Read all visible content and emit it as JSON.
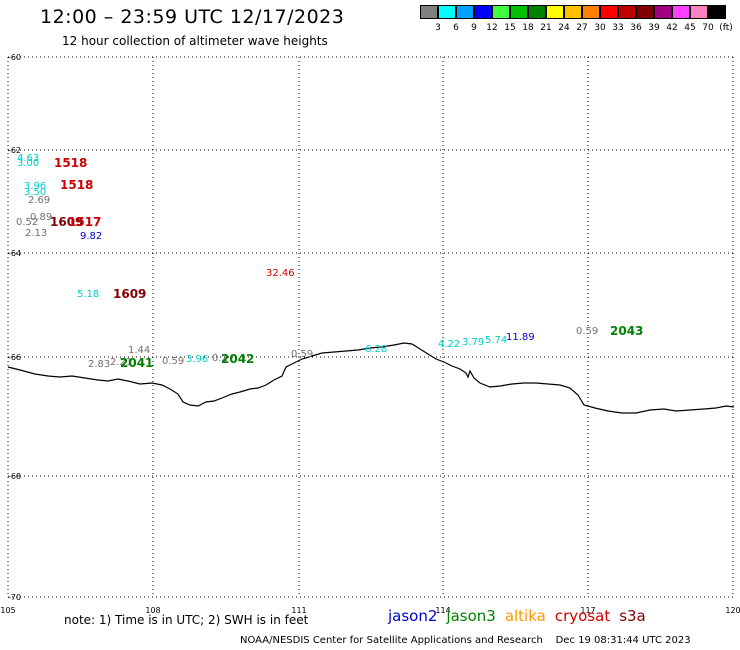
{
  "header": {
    "title": "12:00 – 23:59 UTC 12/17/2023",
    "subtitle": "12 hour collection of altimeter wave heights"
  },
  "legend": {
    "colors": [
      "#808080",
      "#00ffff",
      "#00a0ff",
      "#0000ff",
      "#40ff40",
      "#00c000",
      "#008000",
      "#ffff00",
      "#ffc000",
      "#ff8000",
      "#ff0000",
      "#c00000",
      "#800000",
      "#a00080",
      "#ff40ff",
      "#ff80c0",
      "#000000"
    ],
    "labels": [
      "3",
      "6",
      "9",
      "12",
      "15",
      "18",
      "21",
      "24",
      "27",
      "30",
      "33",
      "36",
      "39",
      "42",
      "45",
      "70"
    ],
    "unit": "(ft)"
  },
  "map": {
    "lon_ticks": [
      "105",
      "108",
      "111",
      "114",
      "117",
      "120"
    ],
    "lat_ticks": [
      "-60",
      "-62",
      "-64",
      "-66",
      "-68",
      "-70"
    ],
    "coastline_color": "#000000",
    "grid_color": "#000000"
  },
  "annotations": [
    {
      "text": "4.63",
      "color": "#00cccc",
      "size": "small"
    },
    {
      "text": "3.00",
      "color": "#00cccc",
      "size": "small"
    },
    {
      "text": "1518",
      "color": "#cc0000",
      "size": "big"
    },
    {
      "text": "3.96",
      "color": "#00cccc",
      "size": "small"
    },
    {
      "text": "3.50",
      "color": "#00cccc",
      "size": "small"
    },
    {
      "text": "1518",
      "color": "#cc0000",
      "size": "big"
    },
    {
      "text": "2.69",
      "color": "#707070",
      "size": "small"
    },
    {
      "text": "0.89",
      "color": "#707070",
      "size": "small"
    },
    {
      "text": "0.52",
      "color": "#707070",
      "size": "small"
    },
    {
      "text": "1609",
      "color": "#800000",
      "size": "big"
    },
    {
      "text": "1517",
      "color": "#cc0000",
      "size": "big"
    },
    {
      "text": "2.13",
      "color": "#707070",
      "size": "small"
    },
    {
      "text": "9.82",
      "color": "#0000cc",
      "size": "small"
    },
    {
      "text": "32.46",
      "color": "#cc0000",
      "size": "small"
    },
    {
      "text": "5.18",
      "color": "#00cccc",
      "size": "small"
    },
    {
      "text": "1609",
      "color": "#800000",
      "size": "big"
    },
    {
      "text": "1.44",
      "color": "#707070",
      "size": "small"
    },
    {
      "text": "2.83",
      "color": "#707070",
      "size": "small"
    },
    {
      "text": "2.21",
      "color": "#707070",
      "size": "small"
    },
    {
      "text": "2041",
      "color": "#008000",
      "size": "big"
    },
    {
      "text": "0.59",
      "color": "#707070",
      "size": "small"
    },
    {
      "text": "3.96",
      "color": "#00cccc",
      "size": "small"
    },
    {
      "text": "0.2",
      "color": "#707070",
      "size": "small"
    },
    {
      "text": "2042",
      "color": "#008000",
      "size": "big"
    },
    {
      "text": "0.59",
      "color": "#707070",
      "size": "small"
    },
    {
      "text": "6.28",
      "color": "#00cccc",
      "size": "small"
    },
    {
      "text": "4.22",
      "color": "#00cccc",
      "size": "small"
    },
    {
      "text": "3.79",
      "color": "#00cccc",
      "size": "small"
    },
    {
      "text": "5.74",
      "color": "#00cccc",
      "size": "small"
    },
    {
      "text": "11.89",
      "color": "#0000cc",
      "size": "small"
    },
    {
      "text": "0.59",
      "color": "#707070",
      "size": "small"
    },
    {
      "text": "2043",
      "color": "#008000",
      "size": "big"
    }
  ],
  "footer": {
    "note": "note: 1) Time is in UTC; 2) SWH is in feet",
    "satellites": [
      {
        "name": "jason2",
        "color": "#0000cc"
      },
      {
        "name": "jason3",
        "color": "#008000"
      },
      {
        "name": "altika",
        "color": "#ff9900"
      },
      {
        "name": "cryosat",
        "color": "#cc0000"
      },
      {
        "name": "s3a",
        "color": "#800000"
      }
    ],
    "credit": "NOAA/NESDIS Center for Satellite Applications and Research",
    "timestamp": "Dec 19 08:31:44 UTC 2023"
  }
}
